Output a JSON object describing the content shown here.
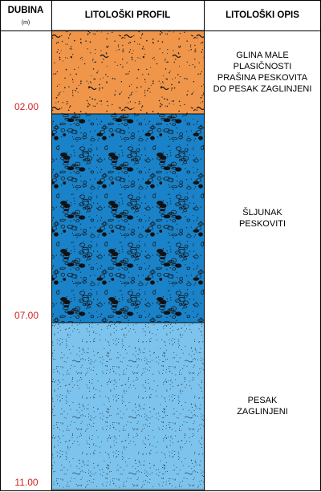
{
  "header": {
    "depth": "DUBINA",
    "depth_unit": "(m)",
    "profile": "LITOLOŠKI PROFIL",
    "description": "LITOLOŠKI OPIS"
  },
  "layers": [
    {
      "depth": "02.00",
      "description": [
        "GLINA MALE",
        "PLASIČNOSTI",
        "PRAŠINA PESKOVITA",
        "DO PESAK ZAGLINJENI"
      ]
    },
    {
      "depth": "07.00",
      "description": [
        "ŠLJUNAK",
        "PESKOVITI"
      ]
    },
    {
      "depth": "11.00",
      "description": [
        "PESAK",
        "ZAGLINJENI"
      ]
    }
  ]
}
